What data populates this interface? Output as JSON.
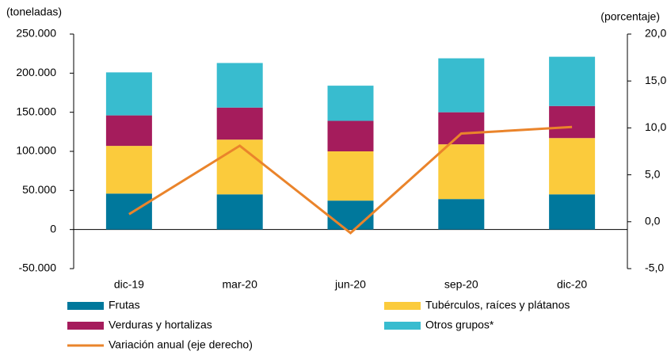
{
  "chart_data": {
    "type": "bar",
    "y_label": "(toneladas)",
    "y2_label": "(porcentaje)",
    "categories": [
      "dic-19",
      "mar-20",
      "jun-20",
      "sep-20",
      "dic-20"
    ],
    "series": [
      {
        "name": "Frutas",
        "color": "#00789c",
        "values": [
          46000,
          45000,
          37000,
          39000,
          45000
        ]
      },
      {
        "name": "Tubérculos, raíces y plátanos",
        "color": "#fbcb3c",
        "values": [
          61000,
          70000,
          63000,
          70000,
          72000
        ]
      },
      {
        "name": "Verduras y hortalizas",
        "color": "#a51c5c",
        "values": [
          39000,
          41000,
          39000,
          41000,
          41000
        ]
      },
      {
        "name": "Otros grupos*",
        "color": "#38bccf",
        "values": [
          55000,
          57000,
          45000,
          69000,
          63000
        ]
      },
      {
        "name": "Variación anual (eje derecho)",
        "color": "#ea842b",
        "type": "line",
        "axis": "y2",
        "values": [
          0.8,
          8.1,
          -1.2,
          9.4,
          10.1
        ]
      }
    ],
    "ylim": [
      -50000,
      250000
    ],
    "yticks": [
      {
        "value": -50000,
        "label": "-50.000"
      },
      0,
      {
        "value": 50000,
        "label": "50.000"
      },
      {
        "value": 100000,
        "label": "100.000"
      },
      {
        "value": 150000,
        "label": "150.000"
      },
      {
        "value": 200000,
        "label": "200.000"
      },
      {
        "value": 250000,
        "label": "250.000"
      }
    ],
    "y2lim": [
      -5,
      20
    ],
    "y2ticks": [
      {
        "value": -5,
        "label": "-5,0"
      },
      {
        "value": 0,
        "label": "0,0"
      },
      {
        "value": 5,
        "label": "5,0"
      },
      {
        "value": 10,
        "label": "10,0"
      },
      {
        "value": 15,
        "label": "15,0"
      },
      {
        "value": 20,
        "label": "20,0"
      }
    ]
  }
}
